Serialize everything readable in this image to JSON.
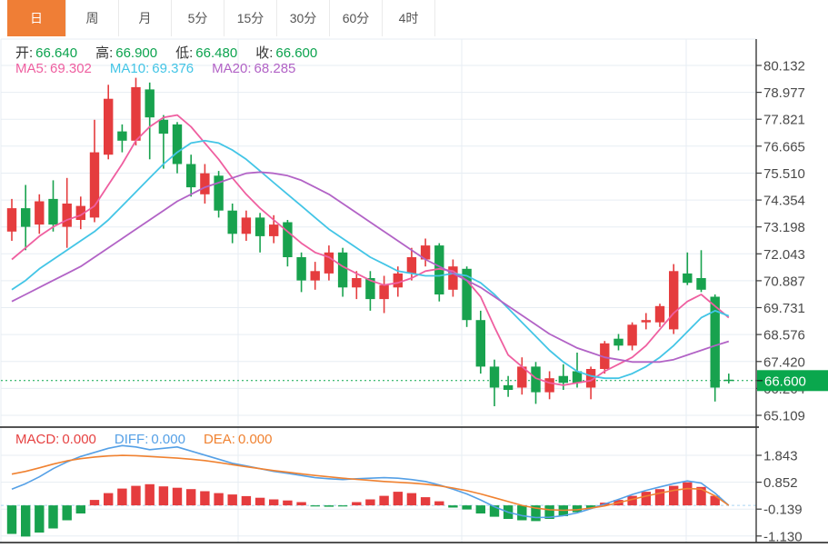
{
  "toolbar": {
    "tabs": [
      {
        "name": "day",
        "label": "日",
        "active": true
      },
      {
        "name": "week",
        "label": "周",
        "active": false
      },
      {
        "name": "month",
        "label": "月",
        "active": false
      },
      {
        "name": "5min",
        "label": "5分",
        "active": false
      },
      {
        "name": "15min",
        "label": "15分",
        "active": false
      },
      {
        "name": "30min",
        "label": "30分",
        "active": false
      },
      {
        "name": "60min",
        "label": "60分",
        "active": false
      },
      {
        "name": "4hour",
        "label": "4时",
        "active": false
      }
    ]
  },
  "legend": {
    "ohlc": [
      {
        "name": "open",
        "label": "开:",
        "value": "66.640"
      },
      {
        "name": "high",
        "label": "高:",
        "value": "66.900"
      },
      {
        "name": "low",
        "label": "低:",
        "value": "66.480"
      },
      {
        "name": "close",
        "label": "收:",
        "value": "66.600"
      }
    ],
    "ma": [
      {
        "name": "ma5",
        "label": "MA5:",
        "value": "69.302"
      },
      {
        "name": "ma10",
        "label": "MA10:",
        "value": "69.376"
      },
      {
        "name": "ma20",
        "label": "MA20:",
        "value": "68.285"
      }
    ]
  },
  "macd_legend": [
    {
      "name": "macd",
      "label": "MACD:",
      "value": "0.000"
    },
    {
      "name": "diff",
      "label": "DIFF:",
      "value": "0.000"
    },
    {
      "name": "dea",
      "label": "DEA:",
      "value": "0.000"
    }
  ],
  "colors": {
    "up": "#e53c3e",
    "down": "#18a24e",
    "tag_green": "#0aa74d",
    "dotted_price": "#0aa74d",
    "ma5": "#ef5fa0",
    "ma10": "#43c5e6",
    "ma20": "#b263c6",
    "diff": "#55a0e6",
    "dea": "#f08231",
    "zero_dash": "#aad5f2",
    "grid": "#e7edf3",
    "axis": "#3a3a3a",
    "axis_label": "#4a4a4a",
    "tab_active_bg": "#ef7e36"
  },
  "chart_data": {
    "type": "candlestick",
    "title": "Daily K-line with MA5/MA10/MA20 and MACD",
    "legend_position": "top-left",
    "grid": true,
    "y_axis": {
      "range": [
        65.109,
        80.132
      ],
      "tick_labels": [
        "80.132",
        "78.977",
        "77.821",
        "76.665",
        "75.510",
        "74.354",
        "73.198",
        "72.043",
        "70.887",
        "69.731",
        "68.576",
        "67.420",
        "66.264",
        "65.109"
      ]
    },
    "x_gridlines": [
      262,
      508,
      755
    ],
    "current_price": 66.6,
    "current_price_label": "66.600",
    "candles": [
      [
        73.0,
        74.4,
        72.6,
        74.0
      ],
      [
        74.0,
        75.0,
        72.2,
        73.2
      ],
      [
        73.3,
        74.6,
        72.9,
        74.3
      ],
      [
        74.4,
        75.2,
        73.0,
        73.3
      ],
      [
        73.2,
        75.3,
        72.3,
        74.2
      ],
      [
        73.5,
        74.5,
        73.1,
        74.1
      ],
      [
        73.6,
        77.8,
        73.4,
        76.4
      ],
      [
        76.3,
        79.3,
        76.1,
        78.7
      ],
      [
        77.3,
        77.6,
        76.4,
        76.9
      ],
      [
        76.9,
        79.6,
        76.7,
        79.2
      ],
      [
        79.1,
        79.4,
        76.1,
        77.9
      ],
      [
        77.8,
        78.0,
        75.7,
        77.2
      ],
      [
        77.6,
        77.7,
        75.5,
        75.9
      ],
      [
        75.9,
        76.3,
        74.5,
        74.9
      ],
      [
        74.6,
        75.9,
        74.2,
        75.5
      ],
      [
        75.4,
        75.6,
        73.6,
        73.9
      ],
      [
        73.9,
        74.2,
        72.5,
        72.9
      ],
      [
        72.9,
        73.9,
        72.6,
        73.6
      ],
      [
        73.6,
        73.8,
        72.1,
        72.8
      ],
      [
        72.8,
        73.7,
        72.5,
        73.3
      ],
      [
        73.4,
        73.5,
        71.5,
        71.9
      ],
      [
        71.9,
        72.1,
        70.4,
        70.9
      ],
      [
        70.9,
        71.7,
        70.5,
        71.3
      ],
      [
        71.2,
        72.4,
        70.9,
        72.1
      ],
      [
        72.1,
        72.3,
        70.2,
        70.6
      ],
      [
        70.6,
        71.3,
        70.1,
        71.0
      ],
      [
        71.0,
        71.3,
        69.6,
        70.1
      ],
      [
        70.1,
        71.1,
        69.5,
        70.7
      ],
      [
        70.6,
        71.5,
        70.2,
        71.2
      ],
      [
        71.2,
        72.3,
        70.9,
        71.9
      ],
      [
        71.8,
        72.7,
        71.5,
        72.4
      ],
      [
        72.4,
        72.5,
        70.0,
        70.3
      ],
      [
        70.5,
        71.8,
        70.2,
        71.5
      ],
      [
        71.4,
        71.5,
        68.9,
        69.2
      ],
      [
        69.2,
        69.6,
        66.9,
        67.2
      ],
      [
        67.2,
        67.5,
        65.5,
        66.3
      ],
      [
        66.4,
        66.8,
        65.9,
        66.2
      ],
      [
        66.3,
        67.6,
        66.0,
        67.2
      ],
      [
        67.2,
        67.4,
        65.6,
        66.1
      ],
      [
        66.1,
        67.0,
        65.8,
        66.7
      ],
      [
        66.8,
        67.3,
        66.2,
        66.5
      ],
      [
        67.0,
        67.8,
        66.3,
        66.5
      ],
      [
        66.3,
        67.2,
        65.8,
        67.1
      ],
      [
        67.1,
        68.3,
        66.9,
        68.2
      ],
      [
        68.4,
        68.6,
        67.9,
        68.1
      ],
      [
        68.1,
        69.1,
        67.9,
        69.0
      ],
      [
        69.1,
        69.5,
        68.8,
        69.2
      ],
      [
        69.1,
        69.9,
        68.9,
        69.8
      ],
      [
        68.8,
        71.6,
        68.6,
        71.3
      ],
      [
        71.2,
        72.1,
        70.7,
        70.8
      ],
      [
        71.0,
        72.2,
        70.4,
        70.5
      ],
      [
        70.2,
        70.3,
        65.7,
        66.3
      ],
      [
        66.64,
        66.9,
        66.48,
        66.6
      ]
    ],
    "series": [
      {
        "name": "MA5",
        "values": [
          71.8,
          72.3,
          72.8,
          73.2,
          73.5,
          73.7,
          74.1,
          75.0,
          75.9,
          76.9,
          77.5,
          77.9,
          78.0,
          77.5,
          76.8,
          76.1,
          75.3,
          74.6,
          74.0,
          73.5,
          73.0,
          72.5,
          72.1,
          71.9,
          71.5,
          71.2,
          70.9,
          70.7,
          70.8,
          71.0,
          71.3,
          71.4,
          71.3,
          70.9,
          70.2,
          68.9,
          67.7,
          67.2,
          66.7,
          66.5,
          66.4,
          66.5,
          66.6,
          67.0,
          67.3,
          67.6,
          68.1,
          68.8,
          69.5,
          70.0,
          70.3,
          69.8,
          69.302
        ]
      },
      {
        "name": "MA10",
        "values": [
          70.5,
          70.9,
          71.4,
          71.8,
          72.2,
          72.6,
          73.0,
          73.5,
          74.1,
          74.7,
          75.3,
          75.9,
          76.4,
          76.8,
          76.9,
          76.8,
          76.5,
          76.1,
          75.6,
          75.1,
          74.6,
          74.1,
          73.6,
          73.1,
          72.7,
          72.3,
          71.9,
          71.6,
          71.3,
          71.2,
          71.1,
          71.1,
          71.2,
          71.1,
          70.8,
          70.3,
          69.7,
          69.1,
          68.5,
          67.9,
          67.4,
          67.0,
          66.8,
          66.7,
          66.7,
          66.9,
          67.2,
          67.6,
          68.1,
          68.7,
          69.3,
          69.6,
          69.376
        ]
      },
      {
        "name": "MA20",
        "values": [
          70.0,
          70.3,
          70.6,
          70.9,
          71.2,
          71.5,
          71.9,
          72.3,
          72.7,
          73.1,
          73.5,
          73.9,
          74.3,
          74.6,
          74.9,
          75.1,
          75.3,
          75.5,
          75.55,
          75.5,
          75.4,
          75.2,
          74.9,
          74.6,
          74.2,
          73.8,
          73.4,
          73.0,
          72.6,
          72.2,
          71.8,
          71.5,
          71.2,
          70.9,
          70.6,
          70.2,
          69.8,
          69.4,
          69.0,
          68.6,
          68.3,
          68.0,
          67.8,
          67.6,
          67.5,
          67.4,
          67.4,
          67.4,
          67.5,
          67.7,
          67.9,
          68.1,
          68.285
        ]
      }
    ],
    "macd": {
      "tick_labels": [
        "1.843",
        "0.852",
        "-0.139",
        "-1.130"
      ],
      "range": [
        -1.13,
        1.843
      ],
      "histogram": [
        -1.05,
        -1.15,
        -1.0,
        -0.85,
        -0.55,
        -0.3,
        0.2,
        0.45,
        0.62,
        0.72,
        0.78,
        0.7,
        0.65,
        0.6,
        0.52,
        0.45,
        0.4,
        0.34,
        0.28,
        0.22,
        0.18,
        0.12,
        -0.04,
        -0.05,
        -0.03,
        0.12,
        0.22,
        0.35,
        0.5,
        0.45,
        0.3,
        0.15,
        -0.08,
        -0.15,
        -0.3,
        -0.42,
        -0.5,
        -0.55,
        -0.58,
        -0.5,
        -0.4,
        -0.25,
        -0.1,
        0.1,
        0.2,
        0.35,
        0.5,
        0.6,
        0.72,
        0.85,
        0.68,
        0.35,
        0.0
      ],
      "diff": [
        0.6,
        0.8,
        1.05,
        1.35,
        1.6,
        1.8,
        1.95,
        2.1,
        2.2,
        2.15,
        2.05,
        2.1,
        2.15,
        2.0,
        1.85,
        1.7,
        1.55,
        1.45,
        1.35,
        1.25,
        1.18,
        1.1,
        1.02,
        0.98,
        0.95,
        0.98,
        1.0,
        1.02,
        1.0,
        0.95,
        0.88,
        0.75,
        0.6,
        0.42,
        0.2,
        -0.05,
        -0.25,
        -0.38,
        -0.45,
        -0.44,
        -0.38,
        -0.28,
        -0.12,
        0.05,
        0.22,
        0.4,
        0.55,
        0.68,
        0.8,
        0.9,
        0.82,
        0.45,
        0.0
      ],
      "dea": [
        1.15,
        1.25,
        1.38,
        1.52,
        1.64,
        1.72,
        1.78,
        1.82,
        1.84,
        1.83,
        1.8,
        1.77,
        1.74,
        1.7,
        1.65,
        1.58,
        1.5,
        1.42,
        1.35,
        1.28,
        1.22,
        1.16,
        1.1,
        1.05,
        1.0,
        0.96,
        0.92,
        0.88,
        0.85,
        0.82,
        0.78,
        0.72,
        0.64,
        0.54,
        0.42,
        0.28,
        0.14,
        0.0,
        -0.1,
        -0.16,
        -0.18,
        -0.16,
        -0.1,
        -0.02,
        0.1,
        0.22,
        0.34,
        0.45,
        0.55,
        0.62,
        0.6,
        0.35,
        0.0
      ]
    }
  }
}
